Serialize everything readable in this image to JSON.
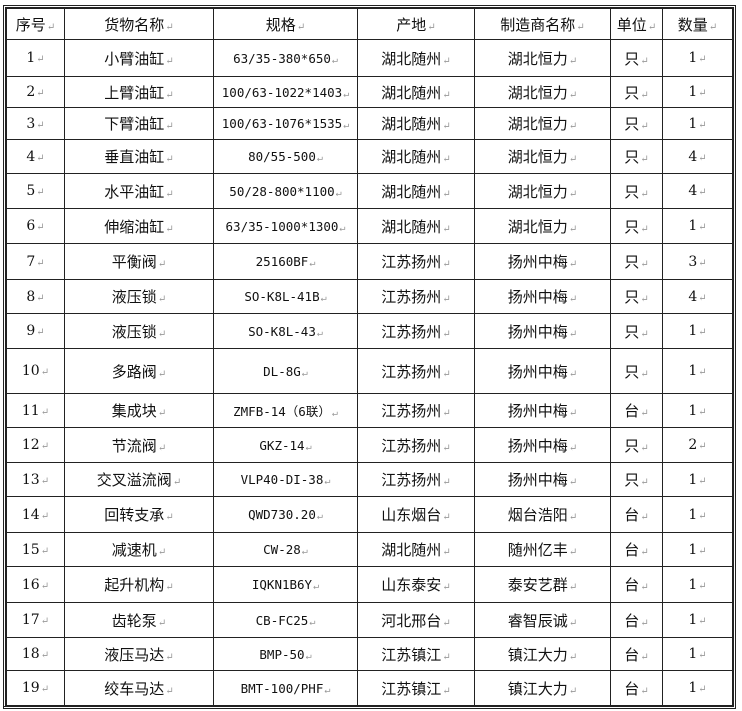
{
  "table": {
    "headers": [
      "序号",
      "货物名称",
      "规格",
      "产地",
      "制造商名称",
      "单位",
      "数量"
    ],
    "rows": [
      [
        "1",
        "小臂油缸",
        "63/35-380*650",
        "湖北随州",
        "湖北恒力",
        "只",
        "1"
      ],
      [
        "2",
        "上臂油缸",
        "100/63-1022*1403",
        "湖北随州",
        "湖北恒力",
        "只",
        "1"
      ],
      [
        "3",
        "下臂油缸",
        "100/63-1076*1535",
        "湖北随州",
        "湖北恒力",
        "只",
        "1"
      ],
      [
        "4",
        "垂直油缸",
        "80/55-500",
        "湖北随州",
        "湖北恒力",
        "只",
        "4"
      ],
      [
        "5",
        "水平油缸",
        "50/28-800*1100",
        "湖北随州",
        "湖北恒力",
        "只",
        "4"
      ],
      [
        "6",
        "伸缩油缸",
        "63/35-1000*1300",
        "湖北随州",
        "湖北恒力",
        "只",
        "1"
      ],
      [
        "7",
        "平衡阀",
        "25160BF",
        "江苏扬州",
        "扬州中梅",
        "只",
        "3"
      ],
      [
        "8",
        "液压锁",
        "SO-K8L-41B",
        "江苏扬州",
        "扬州中梅",
        "只",
        "4"
      ],
      [
        "9",
        "液压锁",
        "SO-K8L-43",
        "江苏扬州",
        "扬州中梅",
        "只",
        "1"
      ],
      [
        "10",
        "多路阀",
        "DL-8G",
        "江苏扬州",
        "扬州中梅",
        "只",
        "1"
      ],
      [
        "11",
        "集成块",
        "ZMFB-14（6联）",
        "江苏扬州",
        "扬州中梅",
        "台",
        "1"
      ],
      [
        "12",
        "节流阀",
        "GKZ-14",
        "江苏扬州",
        "扬州中梅",
        "只",
        "2"
      ],
      [
        "13",
        "交叉溢流阀",
        "VLP40-DI-38",
        "江苏扬州",
        "扬州中梅",
        "只",
        "1"
      ],
      [
        "14",
        "回转支承",
        "QWD730.20",
        "山东烟台",
        "烟台浩阳",
        "台",
        "1"
      ],
      [
        "15",
        "减速机",
        "CW-28",
        "湖北随州",
        "随州亿丰",
        "台",
        "1"
      ],
      [
        "16",
        "起升机构",
        "IQKN1B6Y",
        "山东泰安",
        "泰安艺群",
        "台",
        "1"
      ],
      [
        "17",
        "齿轮泵",
        "CB-FC25",
        "河北邢台",
        "睿智辰诚",
        "台",
        "1"
      ],
      [
        "18",
        "液压马达",
        "BMP-50",
        "江苏镇江",
        "镇江大力",
        "台",
        "1"
      ],
      [
        "19",
        "绞车马达",
        "BMT-100/PHF",
        "江苏镇江",
        "镇江大力",
        "台",
        "1"
      ]
    ]
  }
}
